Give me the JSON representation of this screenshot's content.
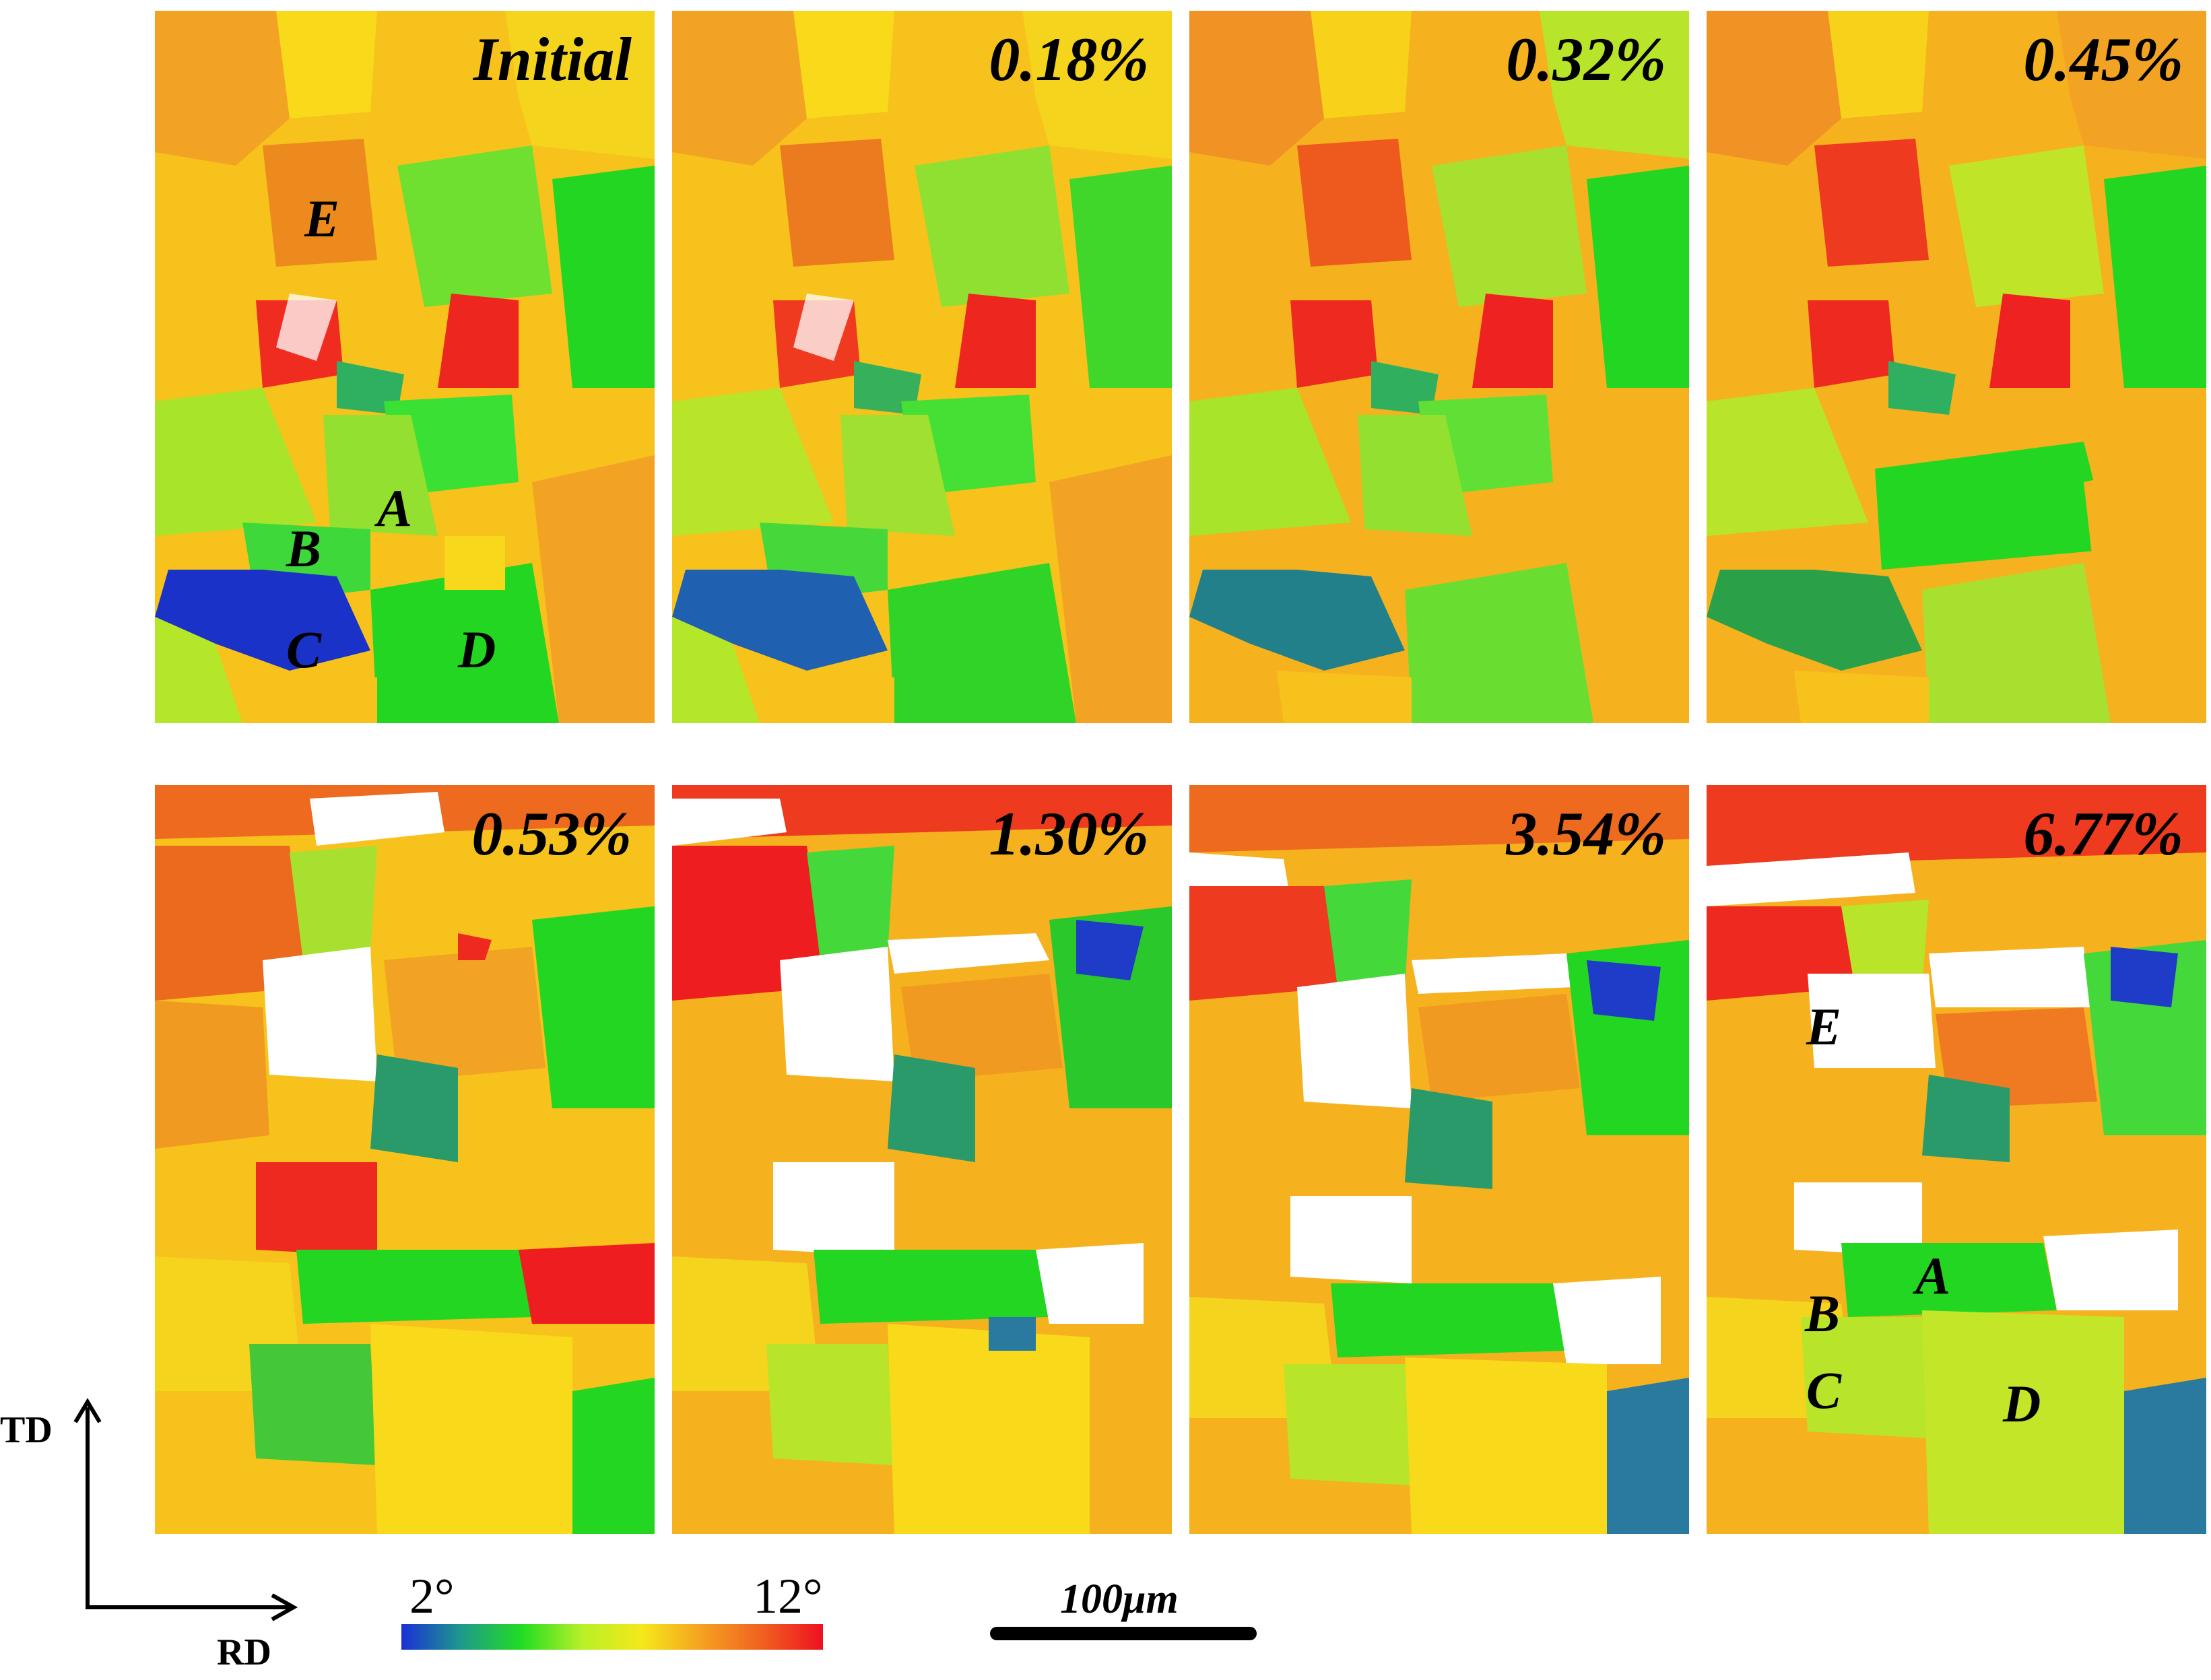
{
  "panels": [
    {
      "label": "Initial"
    },
    {
      "label": "0.18%"
    },
    {
      "label": "0.32%"
    },
    {
      "label": "0.45%"
    },
    {
      "label": "0.53%"
    },
    {
      "label": "1.30%"
    },
    {
      "label": "3.54%"
    },
    {
      "label": "6.77%"
    }
  ],
  "grain_labels": {
    "initial": {
      "a": "A",
      "b": "B",
      "c": "C",
      "d": "D",
      "e": "E"
    },
    "final": {
      "a": "A",
      "b": "B",
      "c": "C",
      "d": "D",
      "e": "E"
    }
  },
  "axes": {
    "td": "TD",
    "rd": "RD"
  },
  "colorbar": {
    "min_label": "2°",
    "max_label": "12°",
    "min_value": 2,
    "max_value": 12,
    "colors": [
      "#1a2fd6",
      "#1f9a8a",
      "#22dd22",
      "#b8f028",
      "#f5e81a",
      "#f5a020",
      "#f06020",
      "#ee1020"
    ]
  },
  "scale_bar": {
    "label": "100μm"
  }
}
